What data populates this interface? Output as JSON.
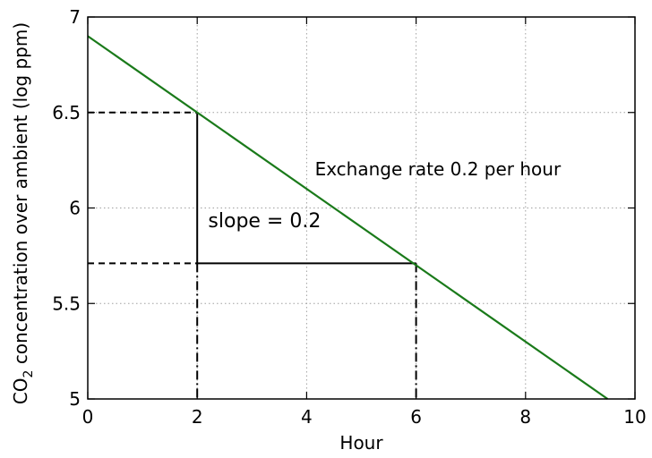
{
  "chart_data": {
    "type": "line",
    "title": "",
    "xlabel": "Hour",
    "ylabel": {
      "prefix": "CO",
      "subscript": "2",
      "suffix": " concentration over ambient (log ppm)"
    },
    "xlim": [
      0,
      10
    ],
    "ylim": [
      5,
      7
    ],
    "xticks": [
      0,
      2,
      4,
      6,
      8,
      10
    ],
    "xtick_labels": [
      "0",
      "2",
      "4",
      "6",
      "8",
      "10"
    ],
    "yticks": [
      5,
      5.5,
      6,
      6.5,
      7
    ],
    "ytick_labels": [
      "5",
      "5.5",
      "6",
      "6.5",
      "7"
    ],
    "grid": true,
    "legend": false,
    "series": [
      {
        "color": "#1a7a1a",
        "x": [
          0,
          9.5
        ],
        "y": [
          6.9,
          5.0
        ]
      }
    ],
    "guide_points": [
      {
        "x": 2,
        "y": 6.5
      },
      {
        "x": 6,
        "y": 5.71
      }
    ],
    "annotations": [
      {
        "text": "Exchange rate 0.2 per hour",
        "x": 4.15,
        "y": 6.17
      },
      {
        "text": "slope = 0.2",
        "x": 2.2,
        "y": 5.9
      }
    ]
  },
  "colors": {
    "line": "#1a7a1a",
    "grid": "#a0a0a0",
    "axis": "#000000"
  }
}
